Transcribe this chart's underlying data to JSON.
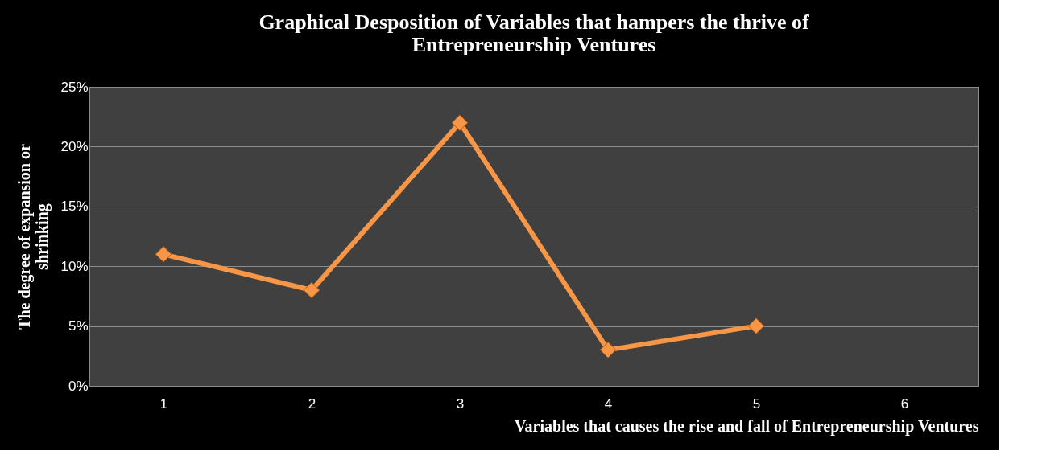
{
  "chart_data": {
    "type": "line",
    "title": "Graphical Desposition of Variables that hampers the thrive of Entrepreneurship Ventures",
    "xlabel": "Variables that causes the rise and fall of Entrepreneurship Ventures",
    "ylabel": "The degree of expansion or shrinking",
    "categories": [
      "1",
      "2",
      "3",
      "4",
      "5",
      "6"
    ],
    "series": [
      {
        "color": "#f79646",
        "values": [
          11,
          8,
          22,
          3,
          5,
          null
        ]
      }
    ],
    "ylim": [
      0,
      25
    ],
    "yticks": [
      {
        "value": 0,
        "label": "0%"
      },
      {
        "value": 5,
        "label": "5%"
      },
      {
        "value": 10,
        "label": "10%"
      },
      {
        "value": 15,
        "label": "15%"
      },
      {
        "value": 20,
        "label": "20%"
      },
      {
        "value": 25,
        "label": "25%"
      }
    ],
    "grid": "y",
    "marker": "diamond",
    "line_style": "solid"
  }
}
